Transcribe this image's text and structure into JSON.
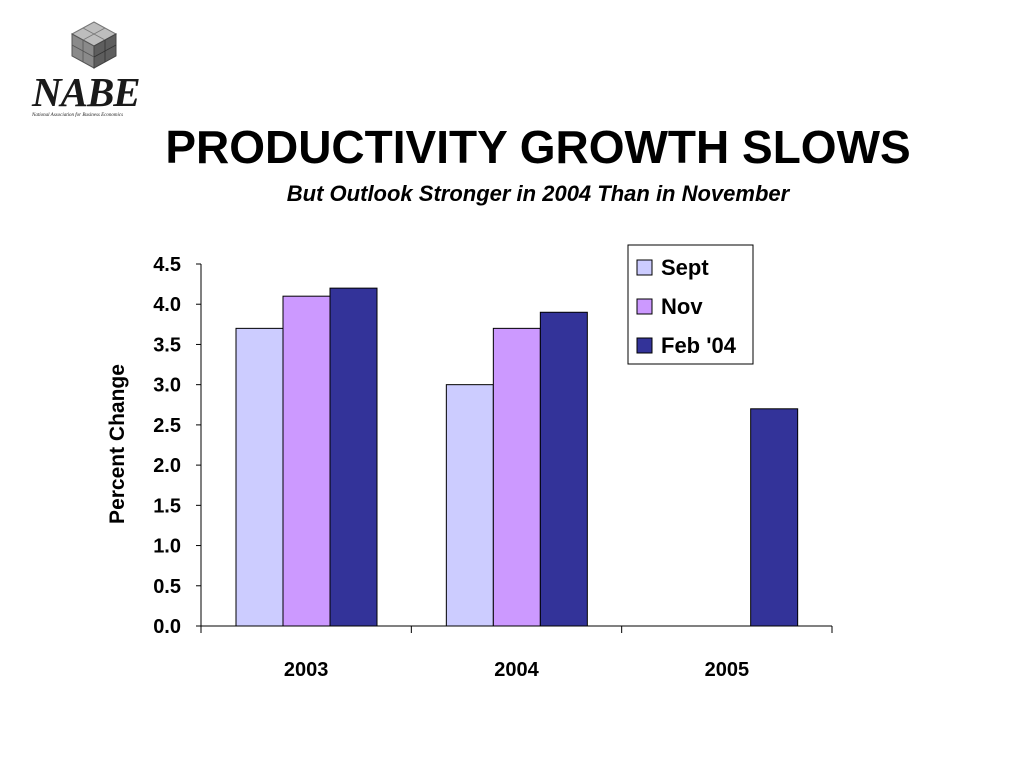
{
  "logo": {
    "text": "NABE",
    "subtext": "National Association for Business Economics"
  },
  "title": "PRODUCTIVITY GROWTH SLOWS",
  "subtitle": "But Outlook Stronger in 2004 Than in November",
  "colors": {
    "sept": "#ccccff",
    "nov": "#cc99ff",
    "feb": "#333399"
  },
  "chart_data": {
    "type": "bar",
    "categories": [
      "2003",
      "2004",
      "2005"
    ],
    "series": [
      {
        "name": "Sept",
        "values": [
          3.7,
          3.0,
          null
        ]
      },
      {
        "name": "Nov",
        "values": [
          4.1,
          3.7,
          null
        ]
      },
      {
        "name": "Feb '04",
        "values": [
          4.2,
          3.9,
          2.7
        ]
      }
    ],
    "xlabel": "",
    "ylabel": "Percent Change",
    "ylim": [
      0,
      4.5
    ],
    "yticks": [
      "0.0",
      "0.5",
      "1.0",
      "1.5",
      "2.0",
      "2.5",
      "3.0",
      "3.5",
      "4.0",
      "4.5"
    ],
    "grid": false,
    "legend": "top-right"
  }
}
